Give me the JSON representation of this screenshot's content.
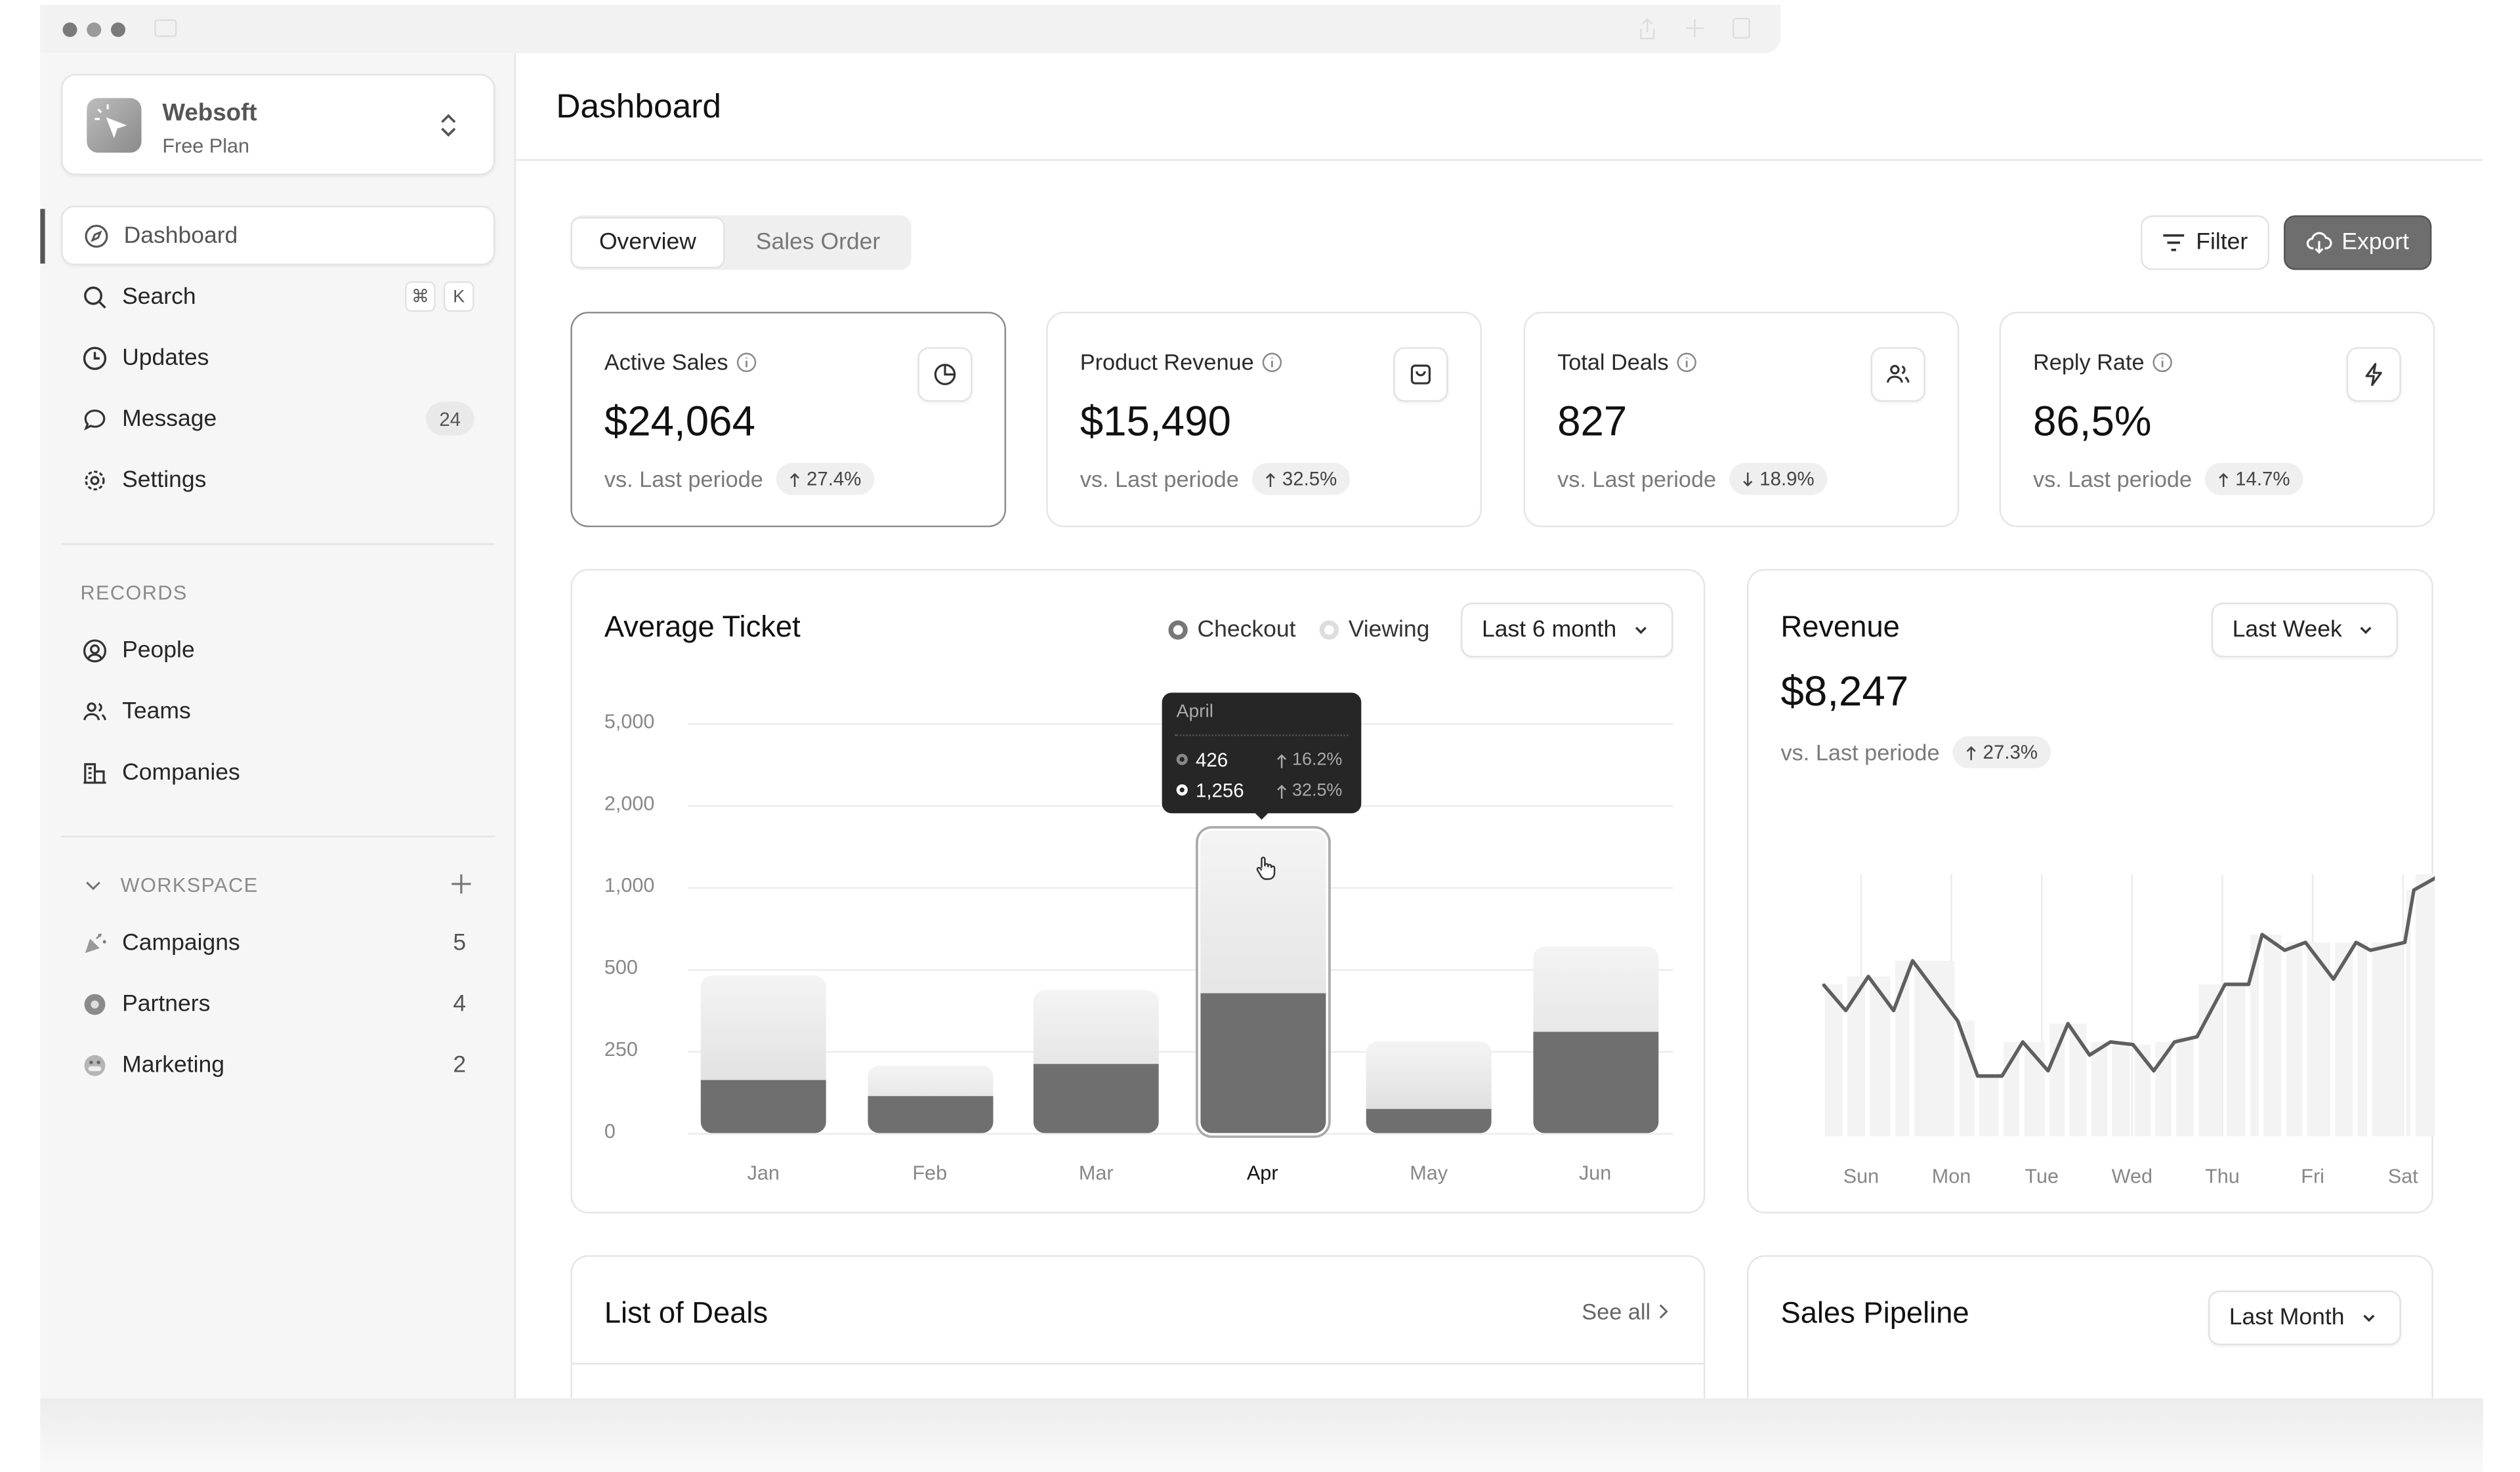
{
  "workspace": {
    "name": "Websoft",
    "plan": "Free Plan"
  },
  "sidebar": {
    "nav": [
      {
        "label": "Dashboard",
        "icon": "compass-icon"
      },
      {
        "label": "Search",
        "icon": "search-icon"
      },
      {
        "label": "Updates",
        "icon": "clock-icon"
      },
      {
        "label": "Message",
        "icon": "message-icon",
        "badge": "24"
      },
      {
        "label": "Settings",
        "icon": "gear-icon"
      }
    ],
    "search_shortcut": [
      "⌘",
      "K"
    ],
    "records_label": "RECORDS",
    "records": [
      {
        "label": "People"
      },
      {
        "label": "Teams"
      },
      {
        "label": "Companies"
      }
    ],
    "workspace_label": "WORKSPACE",
    "workspace_items": [
      {
        "label": "Campaigns",
        "count": "5"
      },
      {
        "label": "Partners",
        "count": "4"
      },
      {
        "label": "Marketing",
        "count": "2"
      }
    ]
  },
  "header": {
    "title": "Dashboard"
  },
  "tabs": [
    {
      "label": "Overview"
    },
    {
      "label": "Sales Order"
    }
  ],
  "toolbar": {
    "filter": "Filter",
    "export": "Export"
  },
  "kpis": [
    {
      "label": "Active Sales",
      "value": "$24,064",
      "sub": "vs. Last periode",
      "change": "27.4%",
      "dir": "up",
      "icon": "pie-chart-icon"
    },
    {
      "label": "Product Revenue",
      "value": "$15,490",
      "sub": "vs. Last periode",
      "change": "32.5%",
      "dir": "up",
      "icon": "shopping-bag-icon"
    },
    {
      "label": "Total Deals",
      "value": "827",
      "sub": "vs. Last periode",
      "change": "18.9%",
      "dir": "down",
      "icon": "users-icon"
    },
    {
      "label": "Reply Rate",
      "value": "86,5%",
      "sub": "vs. Last periode",
      "change": "14.7%",
      "dir": "up",
      "icon": "lightning-icon"
    }
  ],
  "avg_ticket": {
    "title": "Average Ticket",
    "range": "Last 6 month",
    "tooltip": {
      "month": "April",
      "rows": [
        {
          "value": "426",
          "change": "16.2%"
        },
        {
          "value": "1,256",
          "change": "32.5%"
        }
      ]
    }
  },
  "revenue": {
    "title": "Revenue",
    "value": "$8,247",
    "sub": "vs. Last periode",
    "change": "27.3%",
    "range": "Last Week"
  },
  "deals": {
    "title": "List of Deals",
    "see_all": "See all"
  },
  "pipeline": {
    "title": "Sales Pipeline",
    "range": "Last Month"
  },
  "chart_data": [
    {
      "type": "bar",
      "stacked": true,
      "title": "Average Ticket",
      "categories": [
        "Jan",
        "Feb",
        "Mar",
        "Apr",
        "May",
        "Jun"
      ],
      "highlight": "Apr",
      "yticks": [
        0,
        250,
        500,
        1000,
        2000,
        5000
      ],
      "yticklabels": [
        "0",
        "250",
        "500",
        "1,000",
        "2,000",
        "5,000"
      ],
      "series": [
        {
          "name": "Checkout",
          "color": "#6f6f6f",
          "values": [
            160,
            115,
            210,
            426,
            75,
            309
          ]
        },
        {
          "name": "Viewing",
          "color": "#dcdcdc",
          "values": [
            320,
            90,
            226,
            1256,
            205,
            328
          ]
        }
      ],
      "legend": "top-right",
      "grid": true
    },
    {
      "type": "line",
      "title": "Revenue",
      "categories": [
        "Sun",
        "Mon",
        "Tue",
        "Wed",
        "Thu",
        "Fri",
        "Sat"
      ],
      "x": [
        -0.42,
        -0.17,
        0.08,
        0.36,
        0.57,
        1.07,
        1.29,
        1.56,
        1.79,
        2.07,
        2.29,
        2.53,
        2.76,
        3.01,
        3.24,
        3.47,
        3.72,
        4.03,
        4.29,
        4.44,
        4.69,
        4.92,
        5.23,
        5.48,
        5.64,
        6.02,
        6.12,
        6.43
      ],
      "y": [
        58,
        48,
        61,
        48,
        67,
        44,
        23,
        23,
        36,
        25,
        43,
        31,
        36,
        35,
        25,
        36,
        38,
        58,
        58,
        77,
        71,
        74,
        60,
        74,
        71,
        74,
        94,
        100
      ],
      "ylim": [
        0,
        100
      ],
      "grid": true
    }
  ]
}
